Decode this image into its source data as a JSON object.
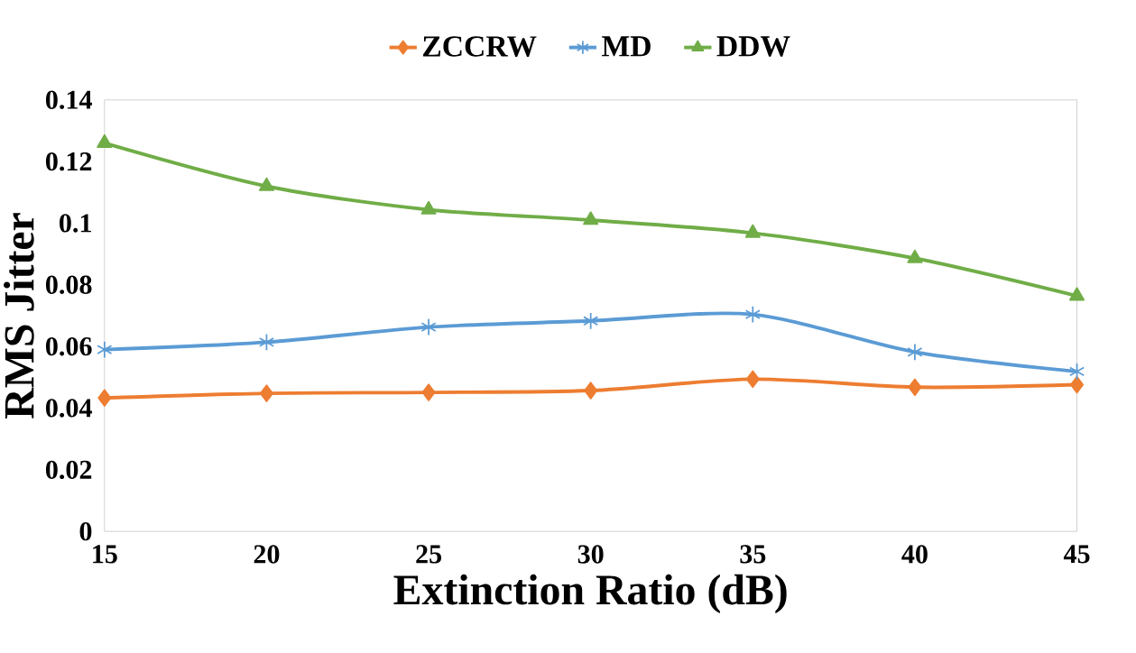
{
  "chart_data": {
    "type": "line",
    "xlabel": "Extinction Ratio (dB)",
    "ylabel": "RMS Jitter",
    "x": [
      15,
      20,
      25,
      30,
      35,
      40,
      45
    ],
    "series": [
      {
        "name": "ZCCRW",
        "color": "#ed7d31",
        "marker": "diamond",
        "values": [
          0.0433,
          0.0448,
          0.0451,
          0.0457,
          0.0494,
          0.0468,
          0.0476
        ]
      },
      {
        "name": "MD",
        "color": "#5b9bd5",
        "marker": "cross",
        "values": [
          0.059,
          0.0614,
          0.0663,
          0.0683,
          0.0704,
          0.0582,
          0.0519
        ]
      },
      {
        "name": "DDW",
        "color": "#70ad47",
        "marker": "triangle",
        "values": [
          0.126,
          0.112,
          0.1044,
          0.101,
          0.0968,
          0.0886,
          0.0764
        ]
      }
    ],
    "xlim": [
      15,
      45
    ],
    "xticks": [
      15,
      20,
      25,
      30,
      35,
      40,
      45
    ],
    "ylim": [
      0,
      0.14
    ],
    "yticks": [
      0,
      0.02,
      0.04,
      0.06,
      0.08,
      0.1,
      0.12,
      0.14
    ],
    "grid": false,
    "legend": "top",
    "line_style": "solid"
  }
}
